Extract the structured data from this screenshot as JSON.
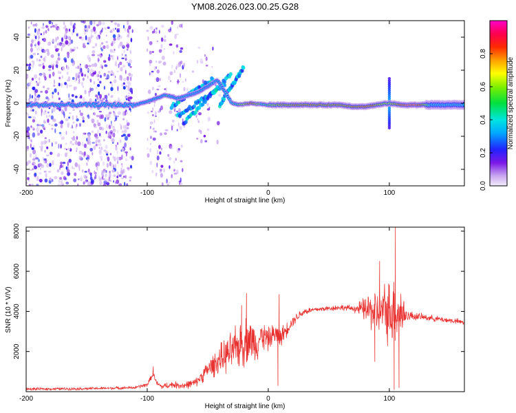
{
  "title": "YM08.2026.023.00.25.G28",
  "colors": {
    "snr_line": "#e8302e",
    "axis": "#000000",
    "background": "#ffffff"
  },
  "chart_data": [
    {
      "type": "heatmap",
      "name": "spectrogram",
      "xlabel": "Height of straight line (km)",
      "ylabel": "Frequency (Hz)",
      "xlim": [
        -200,
        162
      ],
      "ylim": [
        -50,
        50
      ],
      "xticks": [
        -200,
        -100,
        0,
        100
      ],
      "xtick_labels": [
        "-200",
        "-100",
        "0",
        "100"
      ],
      "yticks": [
        -40,
        -20,
        0,
        20,
        40
      ],
      "ytick_labels": [
        "-40",
        "-20",
        "0",
        "20",
        "40"
      ],
      "colorbar": {
        "label": "Normalized spectral amplitude",
        "range": [
          0,
          1
        ],
        "ticks": [
          0.0,
          0.2,
          0.4,
          0.6,
          0.8
        ],
        "tick_labels": [
          "0.0",
          "0.2",
          "0.4",
          "0.6",
          "0.8"
        ]
      },
      "ridge": [
        [
          -200,
          -1
        ],
        [
          -150,
          -1
        ],
        [
          -120,
          -1
        ],
        [
          -110,
          -1
        ],
        [
          -100,
          1
        ],
        [
          -92,
          3
        ],
        [
          -85,
          5
        ],
        [
          -75,
          3
        ],
        [
          -60,
          6
        ],
        [
          -50,
          10
        ],
        [
          -42,
          14
        ],
        [
          -35,
          6
        ],
        [
          -30,
          0
        ],
        [
          -25,
          -1
        ],
        [
          -15,
          0
        ],
        [
          0,
          -1
        ],
        [
          20,
          -1
        ],
        [
          60,
          -1
        ],
        [
          70,
          -2
        ],
        [
          80,
          -2
        ],
        [
          90,
          -1
        ],
        [
          100,
          0
        ],
        [
          110,
          -1
        ],
        [
          130,
          -1
        ],
        [
          162,
          -1
        ]
      ],
      "ridge_amplitude": [
        [
          -200,
          0.3
        ],
        [
          -120,
          0.35
        ],
        [
          -100,
          0.5
        ],
        [
          -85,
          0.6
        ],
        [
          -60,
          0.5
        ],
        [
          -40,
          0.5
        ],
        [
          -20,
          0.7
        ],
        [
          -15,
          0.9
        ],
        [
          -5,
          0.6
        ],
        [
          10,
          0.8
        ],
        [
          30,
          0.85
        ],
        [
          60,
          0.8
        ],
        [
          80,
          0.9
        ],
        [
          100,
          0.7
        ],
        [
          115,
          1.0
        ],
        [
          125,
          0.95
        ],
        [
          135,
          0.5
        ],
        [
          162,
          0.45
        ]
      ],
      "branches": [
        {
          "from": [
            -80,
            -2
          ],
          "to": [
            -45,
            15
          ]
        },
        {
          "from": [
            -75,
            -8
          ],
          "to": [
            -35,
            12
          ]
        },
        {
          "from": [
            -70,
            -12
          ],
          "to": [
            -30,
            18
          ]
        },
        {
          "from": [
            -40,
            -1
          ],
          "to": [
            -20,
            22
          ]
        }
      ],
      "spikes": [
        {
          "x": 100,
          "fmin": -15,
          "fmax": 15
        }
      ],
      "noise_regions": [
        {
          "x": [
            -200,
            -112
          ],
          "f": [
            -50,
            50
          ],
          "density": 1.0
        },
        {
          "x": [
            -100,
            -70
          ],
          "f": [
            -50,
            50
          ],
          "density": 0.5
        },
        {
          "x": [
            -70,
            -40
          ],
          "f": [
            -25,
            35
          ],
          "density": 0.2
        }
      ]
    },
    {
      "type": "line",
      "name": "snr",
      "xlabel": "Height of straight line (km)",
      "ylabel": "SNR (10 * V/V)",
      "xlim": [
        -200,
        162
      ],
      "ylim": [
        0,
        8200
      ],
      "xticks": [
        -200,
        -100,
        0,
        100
      ],
      "xtick_labels": [
        "-200",
        "-100",
        "0",
        "100"
      ],
      "yticks": [
        2000,
        4000,
        6000,
        8000
      ],
      "ytick_labels": [
        "2000",
        "4000",
        "6000",
        "8000"
      ],
      "baseline": [
        [
          -200,
          130
        ],
        [
          -150,
          150
        ],
        [
          -110,
          200
        ],
        [
          -100,
          350
        ],
        [
          -95,
          900
        ],
        [
          -92,
          400
        ],
        [
          -88,
          250
        ],
        [
          -80,
          350
        ],
        [
          -70,
          300
        ],
        [
          -60,
          450
        ],
        [
          -50,
          1100
        ],
        [
          -40,
          1600
        ],
        [
          -30,
          2000
        ],
        [
          -20,
          2500
        ],
        [
          -15,
          2600
        ],
        [
          -10,
          2400
        ],
        [
          -5,
          2800
        ],
        [
          0,
          2600
        ],
        [
          5,
          2900
        ],
        [
          10,
          2700
        ],
        [
          15,
          3100
        ],
        [
          20,
          3500
        ],
        [
          25,
          3800
        ],
        [
          30,
          4000
        ],
        [
          40,
          4100
        ],
        [
          50,
          4150
        ],
        [
          60,
          4200
        ],
        [
          70,
          4150
        ],
        [
          80,
          4100
        ],
        [
          90,
          4000
        ],
        [
          100,
          4000
        ],
        [
          105,
          4100
        ],
        [
          110,
          3900
        ],
        [
          115,
          3800
        ],
        [
          130,
          3700
        ],
        [
          150,
          3550
        ],
        [
          162,
          3450
        ]
      ],
      "noise_amplitude": [
        [
          -200,
          80
        ],
        [
          -110,
          90
        ],
        [
          -95,
          150
        ],
        [
          -60,
          250
        ],
        [
          -45,
          700
        ],
        [
          -30,
          1200
        ],
        [
          -20,
          1500
        ],
        [
          -10,
          1100
        ],
        [
          0,
          700
        ],
        [
          10,
          600
        ],
        [
          20,
          300
        ],
        [
          40,
          150
        ],
        [
          70,
          180
        ],
        [
          78,
          600
        ],
        [
          85,
          1200
        ],
        [
          95,
          1700
        ],
        [
          105,
          2200
        ],
        [
          110,
          1600
        ],
        [
          115,
          300
        ],
        [
          130,
          180
        ],
        [
          162,
          160
        ]
      ],
      "peaks": [
        {
          "x": -95,
          "y": 1250
        },
        {
          "x": -22,
          "y": 4300
        },
        {
          "x": -18,
          "y": 4900
        },
        {
          "x": 9,
          "y": 4850
        },
        {
          "x": 8,
          "y": 300
        },
        {
          "x": 92,
          "y": 6500
        },
        {
          "x": 105,
          "y": 8200
        },
        {
          "x": 104,
          "y": 100
        },
        {
          "x": 108,
          "y": 200
        },
        {
          "x": 88,
          "y": 1500
        }
      ]
    }
  ]
}
